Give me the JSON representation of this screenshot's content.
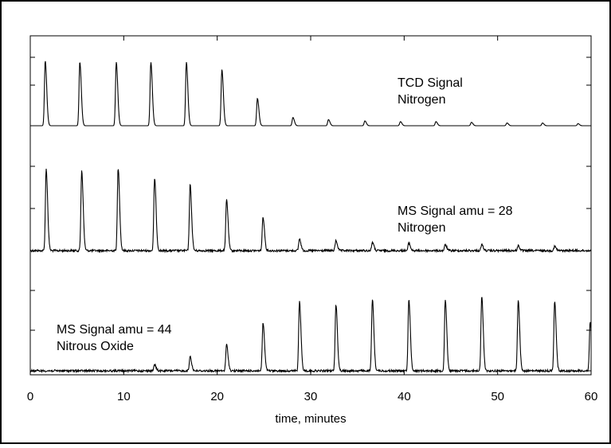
{
  "chart_data": {
    "type": "line",
    "xlabel": "time, minutes",
    "xlim": [
      0,
      60
    ],
    "xticks": [
      0,
      10,
      20,
      30,
      40,
      50,
      60
    ],
    "grid": false,
    "panels": [
      {
        "label_lines": [
          "TCD Signal",
          "Nitrogen"
        ],
        "label_position": "right",
        "peaks": [
          {
            "t": 1.6,
            "h": 0.95
          },
          {
            "t": 5.3,
            "h": 0.93
          },
          {
            "t": 9.2,
            "h": 0.93
          },
          {
            "t": 12.9,
            "h": 0.93
          },
          {
            "t": 16.7,
            "h": 0.93
          },
          {
            "t": 20.5,
            "h": 0.82
          },
          {
            "t": 24.3,
            "h": 0.4
          },
          {
            "t": 28.1,
            "h": 0.12
          },
          {
            "t": 31.9,
            "h": 0.09
          },
          {
            "t": 35.8,
            "h": 0.07
          },
          {
            "t": 39.6,
            "h": 0.06
          },
          {
            "t": 43.4,
            "h": 0.06
          },
          {
            "t": 47.2,
            "h": 0.05
          },
          {
            "t": 51.0,
            "h": 0.04
          },
          {
            "t": 54.8,
            "h": 0.04
          },
          {
            "t": 58.6,
            "h": 0.03
          }
        ]
      },
      {
        "label_lines": [
          "MS Signal amu = 28",
          "Nitrogen"
        ],
        "label_position": "right",
        "peaks": [
          {
            "t": 1.7,
            "h": 0.97
          },
          {
            "t": 5.5,
            "h": 0.95
          },
          {
            "t": 9.4,
            "h": 0.98
          },
          {
            "t": 13.3,
            "h": 0.86
          },
          {
            "t": 17.1,
            "h": 0.78
          },
          {
            "t": 21.0,
            "h": 0.61
          },
          {
            "t": 24.9,
            "h": 0.4
          },
          {
            "t": 28.8,
            "h": 0.14
          },
          {
            "t": 32.7,
            "h": 0.12
          },
          {
            "t": 36.6,
            "h": 0.1
          },
          {
            "t": 40.5,
            "h": 0.09
          },
          {
            "t": 44.4,
            "h": 0.07
          },
          {
            "t": 48.3,
            "h": 0.07
          },
          {
            "t": 52.2,
            "h": 0.06
          },
          {
            "t": 56.1,
            "h": 0.05
          }
        ]
      },
      {
        "label_lines": [
          "MS Signal amu = 44",
          "Nitrous Oxide"
        ],
        "label_position": "left",
        "peaks": [
          {
            "t": 13.3,
            "h": 0.07
          },
          {
            "t": 17.1,
            "h": 0.17
          },
          {
            "t": 21.0,
            "h": 0.31
          },
          {
            "t": 24.9,
            "h": 0.57
          },
          {
            "t": 28.8,
            "h": 0.82
          },
          {
            "t": 32.7,
            "h": 0.79
          },
          {
            "t": 36.6,
            "h": 0.85
          },
          {
            "t": 40.5,
            "h": 0.85
          },
          {
            "t": 44.4,
            "h": 0.85
          },
          {
            "t": 48.3,
            "h": 0.88
          },
          {
            "t": 52.2,
            "h": 0.84
          },
          {
            "t": 56.1,
            "h": 0.83
          },
          {
            "t": 59.9,
            "h": 0.58
          }
        ]
      }
    ]
  }
}
